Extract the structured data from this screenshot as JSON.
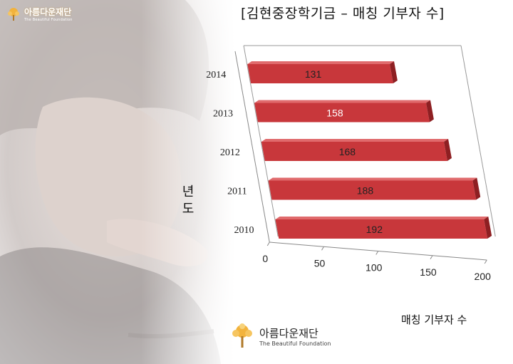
{
  "title": "[김현중장학기금 – 매칭 기부자 수]",
  "logo": {
    "name": "아름다운재단",
    "sub": "The Beautiful Foundation"
  },
  "colors": {
    "bar_front": "#c8373b",
    "bar_top": "#e06a6c",
    "bar_side": "#8e1f22",
    "accent": "#f0b020"
  },
  "chart_data": {
    "type": "bar",
    "orientation": "horizontal",
    "categories": [
      "2014",
      "2013",
      "2012",
      "2011",
      "2010"
    ],
    "values": [
      131,
      158,
      168,
      188,
      192
    ],
    "data_labels": [
      "131",
      "158",
      "168",
      "188",
      "192"
    ],
    "xlabel": "매칭 기부자 수",
    "ylabel": "년도",
    "xlim": [
      0,
      200
    ],
    "xticks": [
      "0",
      "50",
      "100",
      "150",
      "200"
    ],
    "grid": false,
    "legend": "none"
  }
}
